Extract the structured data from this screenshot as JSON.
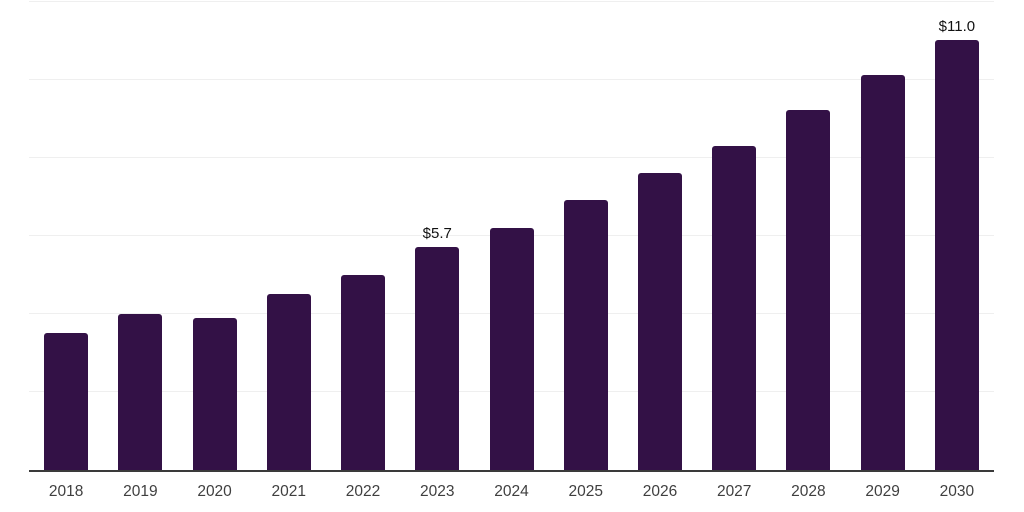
{
  "chart_data": {
    "type": "bar",
    "title": "",
    "xlabel": "",
    "ylabel": "",
    "categories": [
      "2018",
      "2019",
      "2020",
      "2021",
      "2022",
      "2023",
      "2024",
      "2025",
      "2026",
      "2027",
      "2028",
      "2029",
      "2030"
    ],
    "values": [
      3.5,
      4.0,
      3.9,
      4.5,
      5.0,
      5.7,
      6.2,
      6.9,
      7.6,
      8.3,
      9.2,
      10.1,
      11.0
    ],
    "point_labels": {
      "2023": "$5.7",
      "2030": "$11.0"
    },
    "ylim": [
      0,
      12
    ],
    "gridline_step": 2,
    "grid": "horizontal",
    "legend": "none",
    "colors": {
      "bar": "#331146",
      "gridline": "#efefef",
      "axis_line": "#3a3a3a",
      "tick_label": "#3f3f3f",
      "data_label": "#111111",
      "background": "#ffffff"
    }
  }
}
